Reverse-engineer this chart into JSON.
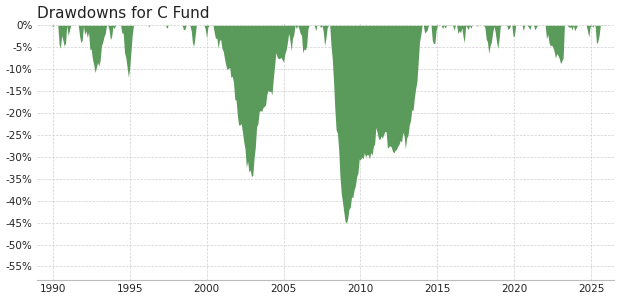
{
  "title": "Drawdowns for C Fund",
  "title_fontsize": 11,
  "fill_color": "#5a9a5a",
  "background_color": "#ffffff",
  "grid_color": "#cccccc",
  "text_color": "#222222",
  "xlim": [
    1989.0,
    2026.5
  ],
  "ylim": [
    -0.58,
    0.005
  ],
  "yticks": [
    0,
    -0.05,
    -0.1,
    -0.15,
    -0.2,
    -0.25,
    -0.3,
    -0.35,
    -0.4,
    -0.45,
    -0.5,
    -0.55
  ],
  "ytick_labels": [
    "0%",
    "-5%",
    "-10%",
    "-15%",
    "-20%",
    "-25%",
    "-30%",
    "-35%",
    "-40%",
    "-45%",
    "-50%",
    "-55%"
  ],
  "xticks": [
    1990,
    1995,
    2000,
    2005,
    2010,
    2015,
    2020,
    2025
  ]
}
